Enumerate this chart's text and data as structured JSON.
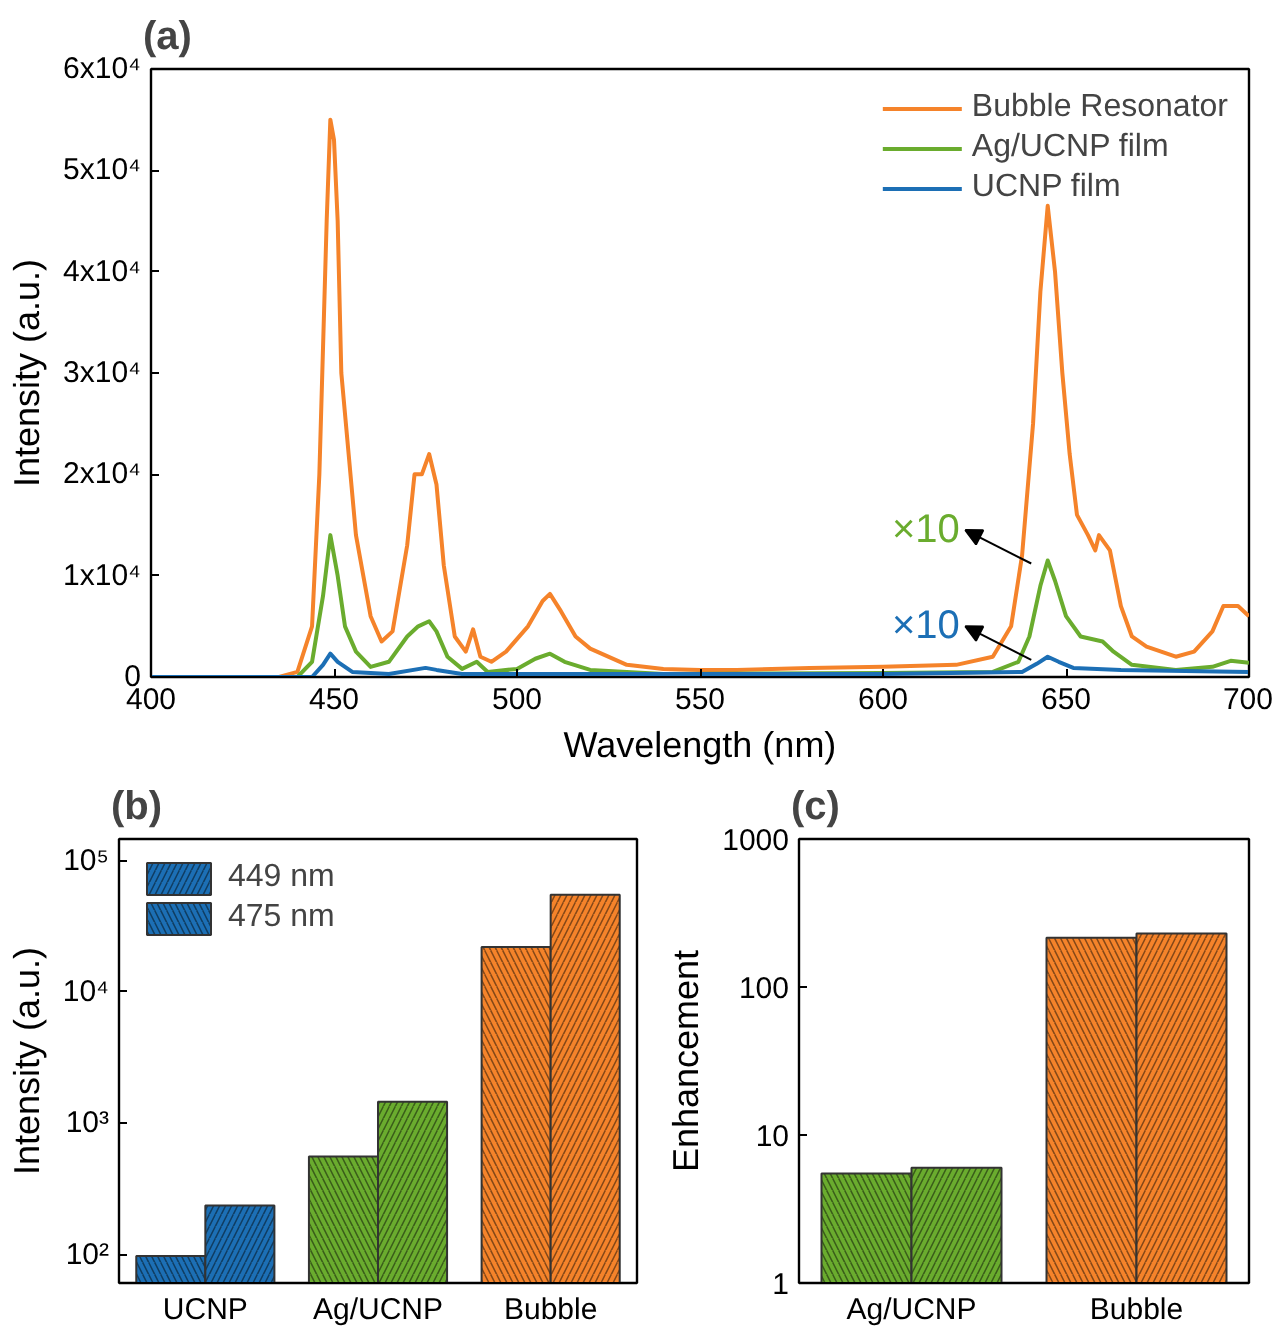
{
  "chart_data": [
    {
      "type": "line",
      "title": "(a)",
      "xlabel": "Wavelength (nm)",
      "ylabel": "Intensity (a.u.)",
      "xlim": [
        400,
        700
      ],
      "xticks": [
        400,
        450,
        500,
        550,
        600,
        650,
        700
      ],
      "ylim": [
        0,
        60000
      ],
      "yticks": [
        0,
        {
          "value": 10000,
          "label": "1x10⁴"
        },
        {
          "value": 20000,
          "label": "2x10⁴"
        },
        {
          "value": 30000,
          "label": "3x10⁴"
        },
        {
          "value": 40000,
          "label": "4x10⁴"
        },
        {
          "value": 50000,
          "label": "5x10⁴"
        },
        {
          "value": 60000,
          "label": "6x10⁴"
        }
      ],
      "grid": false,
      "legend": "top right",
      "marker": "none",
      "line_style": "solid",
      "series": [
        {
          "name": "Bubble Resonator",
          "color": "#f5832a",
          "x": [
            400,
            435,
            440,
            444,
            446,
            448,
            449,
            450,
            451,
            452,
            454,
            456,
            460,
            463,
            466,
            470,
            472,
            474,
            476,
            478,
            480,
            483,
            486,
            488,
            490,
            493,
            497,
            503,
            507,
            509,
            512,
            516,
            520,
            530,
            540,
            550,
            560,
            580,
            600,
            620,
            630,
            635,
            638,
            641,
            643,
            645,
            647,
            649,
            651,
            653,
            656,
            658,
            659,
            662,
            665,
            668,
            672,
            680,
            685,
            690,
            693,
            697,
            700
          ],
          "values": [
            0,
            0,
            500,
            5000,
            20000,
            45000,
            55000,
            53000,
            45000,
            30000,
            22000,
            14000,
            6000,
            3500,
            4500,
            13000,
            20000,
            20000,
            22000,
            19000,
            11000,
            4000,
            2500,
            4700,
            2000,
            1500,
            2500,
            5000,
            7500,
            8200,
            6500,
            4000,
            2800,
            1200,
            800,
            700,
            700,
            900,
            1000,
            1200,
            2000,
            5000,
            12000,
            25000,
            38000,
            46500,
            40000,
            30000,
            22000,
            16000,
            14000,
            12500,
            14000,
            12500,
            7000,
            4000,
            3000,
            2000,
            2500,
            4500,
            7000,
            7000,
            6000
          ]
        },
        {
          "name": "Ag/UCNP film",
          "color": "#6aac2e",
          "x": [
            400,
            440,
            444,
            447,
            449,
            451,
            453,
            456,
            460,
            465,
            470,
            473,
            476,
            478,
            481,
            485,
            489,
            492,
            500,
            505,
            509,
            513,
            520,
            540,
            600,
            630,
            637,
            640,
            643,
            645,
            647,
            650,
            654,
            660,
            663,
            668,
            680,
            690,
            695,
            700
          ],
          "values": [
            0,
            0,
            1500,
            8000,
            14000,
            10000,
            5000,
            2500,
            1000,
            1500,
            4000,
            5000,
            5500,
            4500,
            2000,
            800,
            1500,
            500,
            800,
            1800,
            2300,
            1500,
            700,
            300,
            400,
            500,
            1500,
            4000,
            9000,
            11500,
            9500,
            6000,
            4000,
            3500,
            2500,
            1200,
            700,
            1000,
            1600,
            1400
          ]
        },
        {
          "name": "UCNP film",
          "color": "#1c6fb5",
          "x": [
            400,
            444,
            447,
            449,
            451,
            455,
            465,
            475,
            478,
            485,
            510,
            600,
            638,
            642,
            645,
            648,
            652,
            665,
            700
          ],
          "values": [
            0,
            0,
            1200,
            2300,
            1500,
            500,
            300,
            900,
            700,
            300,
            300,
            300,
            500,
            1300,
            2000,
            1500,
            900,
            700,
            500
          ]
        }
      ],
      "annotations": [
        {
          "text": "×10",
          "x": 645,
          "y": 11500
        },
        {
          "text": "×10",
          "x": 645,
          "y": 2000
        }
      ]
    },
    {
      "type": "bar",
      "title": "(b)",
      "ylabel": "Intensity (a.u.)",
      "categories": [
        "UCNP",
        "Ag/UCNP",
        "Bubble"
      ],
      "log": "y",
      "ylim": [
        61,
        146000
      ],
      "yticks": [
        {
          "value": 100,
          "label": "10²"
        },
        {
          "value": 1000,
          "label": "10³"
        },
        {
          "value": 10000,
          "label": "10⁴"
        },
        {
          "value": 100000,
          "label": "10⁵"
        }
      ],
      "grid": false,
      "legend": "top left",
      "series": [
        {
          "name": "475 nm",
          "colors": [
            "#1c6fb5",
            "#6aac2e",
            "#f5832a"
          ],
          "values": [
            98,
            560,
            22000
          ]
        },
        {
          "name": "449 nm",
          "colors": [
            "#1c6fb5",
            "#6aac2e",
            "#f5832a"
          ],
          "values": [
            237,
            1460,
            55000
          ]
        }
      ]
    },
    {
      "type": "bar",
      "title": "(c)",
      "ylabel": "Enhancement",
      "categories": [
        "Ag/UCNP",
        "Bubble"
      ],
      "log": "y",
      "ylim": [
        1,
        1000
      ],
      "yticks": [
        1,
        10,
        100,
        1000
      ],
      "grid": false,
      "legend": false,
      "series": [
        {
          "colors": [
            "#6aac2e",
            "#f5832a"
          ],
          "values": [
            5.5,
            215
          ]
        },
        {
          "colors": [
            "#6aac2e",
            "#f5832a"
          ],
          "values": [
            6.0,
            230
          ]
        }
      ]
    }
  ]
}
